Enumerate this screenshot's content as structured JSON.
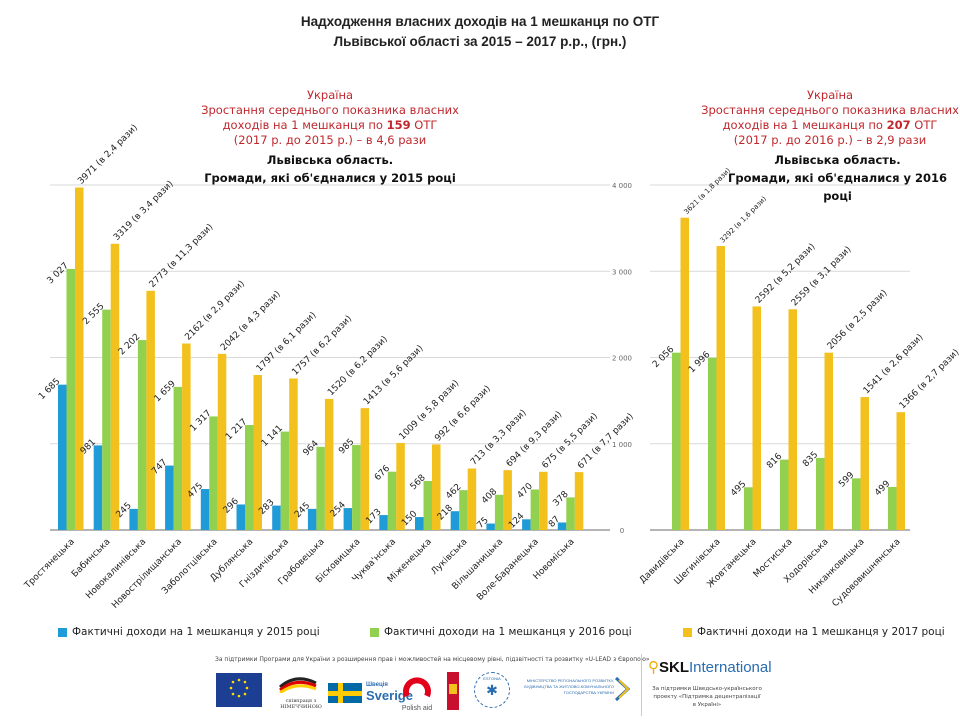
{
  "title": {
    "line1": "Надходження власних доходів на 1 мешканця по ОТГ",
    "line2": "Львівської області за 2015 – 2017 р.р., (грн.)"
  },
  "left_note": {
    "l1": "Україна",
    "l2": "Зростання середнього показника власних",
    "l3a": "доходів на 1 мешканця по ",
    "l3b": "159",
    "l3c": " ОТГ",
    "l4": "(2017 р. до 2015 р.) – в 4,6 рази"
  },
  "left_sub": {
    "l1": "Львівська   область.",
    "l2": "Громади,  які  об'єдналися  у  2015 році"
  },
  "right_note": {
    "l1": "Україна",
    "l2": "Зростання середнього показника власних",
    "l3a": "доходів на 1 мешканця по ",
    "l3b": "207",
    "l3c": " ОТГ",
    "l4": "(2017 р. до 2016 р.) – в 2,9 рази"
  },
  "right_sub": {
    "l1": "Львівська   область.",
    "l2": "Громади,  які  об'єдналися  у  2016 році"
  },
  "legend": {
    "s2015": "Фактичні доходи на 1 мешканця у 2015 році",
    "s2016": "Фактичні доходи на 1 мешканця у 2016 році",
    "s2017": "Фактичні доходи на 1 мешканця у 2017 році"
  },
  "colors": {
    "s2015": "#1f9bd7",
    "s2016": "#92d050",
    "s2017": "#f2c11d",
    "grid": "#d9d9d9",
    "axis": "#888888",
    "note": "#c0282e"
  },
  "footer": {
    "support_text": "За підтримки Програми для України з розширення прав і можливостей на місцевому рівні, підзвітності та розвитку «U-LEAD з Європою»",
    "skl_brand_a": "SKL",
    "skl_brand_b": "International",
    "skl_note": "За підтримки Шведсько-українського проекту «Підтримка децентралізації в Україні»",
    "logo_sweden": "Sverige",
    "logo_sweden_top": "Швеція",
    "logo_polish": "Polish aid",
    "logo_germany": "співпраця з НІМЕЧЧИНОЮ",
    "logo_estonia": "ESTONIA",
    "logo_ministry": "МІНІСТЕРСТВО РЕГІОНАЛЬНОГО РОЗВИТКУ, БУДІВНИЦТВА ТА ЖИТЛОВО-КОМУНАЛЬНОГО ГОСПОДАРСТВА УКРАЇНИ"
  },
  "chart_data": [
    {
      "type": "bar",
      "title": "Львівська область. Громади, які об'єдналися у 2015 році",
      "categories": [
        "Тростянецька",
        "Бабинська",
        "Новокалинівська",
        "Новострілищанська",
        "Заболотцівська",
        "Дублянська",
        "Гніздичівська",
        "Грабовецька",
        "Бісковицька",
        "Чуква'нська",
        "Міженецька",
        "Луківська",
        "Вільшаницька",
        "Воле-Баранецька",
        "Новоміська"
      ],
      "series": [
        {
          "name": "Фактичні доходи на 1 мешканця у 2015 році",
          "values": [
            1685,
            981,
            245,
            747,
            475,
            296,
            283,
            245,
            254,
            173,
            150,
            218,
            75,
            124,
            87
          ],
          "labels": [
            "1 685",
            "981",
            "245",
            "747",
            "475",
            "296",
            "283",
            "245",
            "254",
            "173",
            "150",
            "218",
            "75",
            "124",
            "87"
          ]
        },
        {
          "name": "Фактичні доходи на 1 мешканця у 2016 році",
          "values": [
            3027,
            2555,
            2202,
            1659,
            1317,
            1217,
            1141,
            964,
            985,
            676,
            568,
            462,
            408,
            470,
            378
          ],
          "labels": [
            "3 027",
            "2 555",
            "2 202",
            "1 659",
            "1 317",
            "1 217",
            "1 141",
            "964",
            "985",
            "676",
            "568",
            "462",
            "408",
            "470",
            "378"
          ]
        },
        {
          "name": "Фактичні доходи на 1 мешканця у 2017 році",
          "values": [
            3971,
            3319,
            2773,
            2162,
            2042,
            1797,
            1757,
            1520,
            1413,
            1009,
            992,
            713,
            694,
            675,
            671
          ],
          "labels": [
            "3971 (в 2,4 рази)",
            "3319 (в 3,4 рази)",
            "2773 (в 11,3 рази)",
            "2162 (в 2,9 рази)",
            "2042 (в 4,3 рази)",
            "1797 (в 6,1 рази)",
            "1757 (в 6,2 рази)",
            "1520 (в 6,2 рази)",
            "1413 (в 5,6 рази)",
            "1009 (в 5,8 рази)",
            "992 (в 6,6 рази)",
            "713 (в 3,3 рази)",
            "694 (в 9,3 рази)",
            "675 (в 5,5 рази)",
            "671 (в 7,7 рази)"
          ]
        }
      ],
      "ylim": [
        0,
        4000
      ],
      "yticks": [
        0,
        1000,
        2000,
        3000,
        4000
      ],
      "grid": true,
      "xlabel": "",
      "ylabel": ""
    },
    {
      "type": "bar",
      "title": "Львівська область. Громади, які об'єдналися у 2016 році",
      "categories": [
        "Давидівська",
        "Шегинівська",
        "Жовтанецька",
        "Мостиська",
        "Ходорівська",
        "Никанковицька",
        "Судововишнянська"
      ],
      "series": [
        {
          "name": "Фактичні доходи на 1 мешканця у 2016 році",
          "values": [
            2056,
            1996,
            495,
            816,
            835,
            599,
            499
          ],
          "labels": [
            "2 056",
            "1 996",
            "495",
            "816",
            "835",
            "599",
            "499"
          ]
        },
        {
          "name": "Фактичні доходи на 1 мешканця у 2017 році",
          "values": [
            3621,
            3292,
            2592,
            2559,
            2056,
            1541,
            1366
          ],
          "labels": [
            "3621 (в 1,8 рази)",
            "3292 (в 1,6 рази)",
            "2592 (в 5,2 рази)",
            "2559 (в 3,1 рази)",
            "2056 (в 2,5 рази)",
            "1541 (в 2,6 рази)",
            "1366 (в 2,7 рази)"
          ]
        }
      ],
      "ylim": [
        0,
        4000
      ],
      "yticks": [
        0,
        1000,
        2000,
        3000,
        4000
      ],
      "ytick_labels": [
        "0",
        "1 000",
        "2 000",
        "3 000",
        "4 000"
      ],
      "grid": true,
      "xlabel": "",
      "ylabel": ""
    }
  ]
}
